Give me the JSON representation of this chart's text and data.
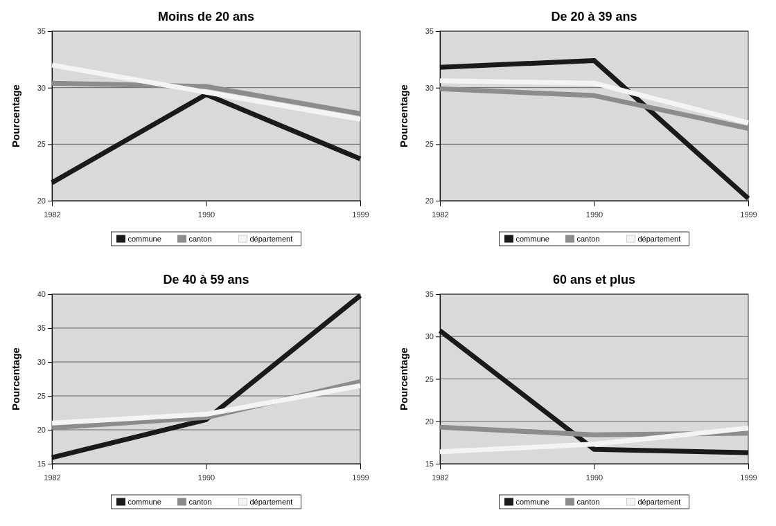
{
  "chart_data": [
    {
      "type": "line",
      "title": "Moins de 20 ans",
      "ylabel": "Pourcentage",
      "categories": [
        "1982",
        "1990",
        "1999"
      ],
      "ylim": [
        20,
        35
      ],
      "yticks": [
        20,
        25,
        30,
        35
      ],
      "grid": "y",
      "legend": "bottom",
      "line_style": "solid",
      "series": [
        {
          "name": "commune",
          "color": "#1a1a1a",
          "values": [
            21.6,
            29.4,
            23.7
          ]
        },
        {
          "name": "canton",
          "color": "#8c8c8c",
          "values": [
            30.4,
            30.1,
            27.7
          ]
        },
        {
          "name": "département",
          "color": "#f4f4f4",
          "values": [
            32.0,
            29.6,
            27.2
          ]
        }
      ]
    },
    {
      "type": "line",
      "title": "De 20 à 39 ans",
      "ylabel": "Pourcentage",
      "categories": [
        "1982",
        "1990",
        "1999"
      ],
      "ylim": [
        20,
        35
      ],
      "yticks": [
        20,
        25,
        30,
        35
      ],
      "grid": "y",
      "legend": "bottom",
      "line_style": "solid",
      "series": [
        {
          "name": "commune",
          "color": "#1a1a1a",
          "values": [
            31.8,
            32.4,
            20.2
          ]
        },
        {
          "name": "canton",
          "color": "#8c8c8c",
          "values": [
            29.9,
            29.3,
            26.4
          ]
        },
        {
          "name": "département",
          "color": "#f4f4f4",
          "values": [
            30.6,
            30.4,
            26.9
          ]
        }
      ]
    },
    {
      "type": "line",
      "title": "De 40 à 59 ans",
      "ylabel": "Pourcentage",
      "categories": [
        "1982",
        "1990",
        "1999"
      ],
      "ylim": [
        15,
        40
      ],
      "yticks": [
        15,
        20,
        25,
        30,
        35,
        40
      ],
      "grid": "y",
      "legend": "bottom",
      "line_style": "solid",
      "series": [
        {
          "name": "commune",
          "color": "#1a1a1a",
          "values": [
            15.9,
            21.5,
            39.8
          ]
        },
        {
          "name": "canton",
          "color": "#8c8c8c",
          "values": [
            20.3,
            21.8,
            27.1
          ]
        },
        {
          "name": "département",
          "color": "#f4f4f4",
          "values": [
            21.0,
            22.3,
            26.5
          ]
        }
      ]
    },
    {
      "type": "line",
      "title": "60 ans et plus",
      "ylabel": "Pourcentage",
      "categories": [
        "1982",
        "1990",
        "1999"
      ],
      "ylim": [
        15,
        35
      ],
      "yticks": [
        15,
        20,
        25,
        30,
        35
      ],
      "grid": "y",
      "legend": "bottom",
      "line_style": "solid",
      "series": [
        {
          "name": "commune",
          "color": "#1a1a1a",
          "values": [
            30.7,
            16.7,
            16.3
          ]
        },
        {
          "name": "canton",
          "color": "#8c8c8c",
          "values": [
            19.3,
            18.4,
            18.6
          ]
        },
        {
          "name": "département",
          "color": "#f4f4f4",
          "values": [
            16.4,
            17.3,
            19.2
          ]
        }
      ]
    }
  ]
}
